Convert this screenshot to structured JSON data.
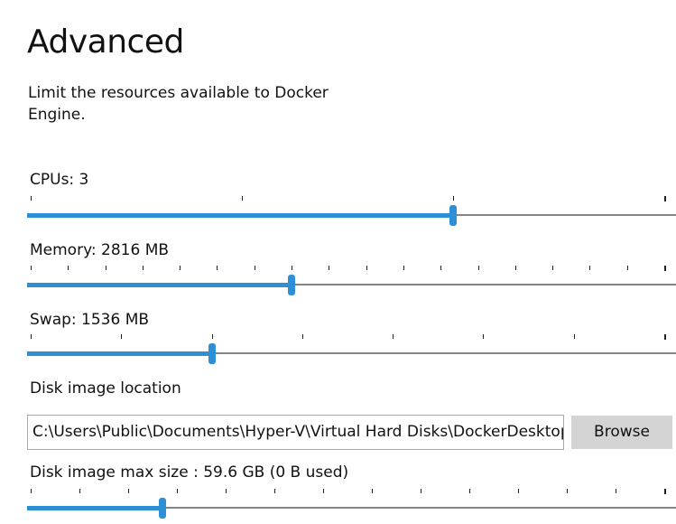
{
  "title": "Advanced",
  "description": "Limit the resources available to Docker Engine.",
  "accent": "#2d8fd5",
  "sliders": [
    {
      "id": "cpus",
      "label": "CPUs: 3",
      "ticks": 4,
      "position": 2
    },
    {
      "id": "memory",
      "label": "Memory: 2816 MB",
      "ticks": 18,
      "position": 7
    },
    {
      "id": "swap",
      "label": "Swap: 1536 MB",
      "ticks": 8,
      "position": 2
    },
    {
      "id": "disk",
      "label": "Disk image max size : 59.6 GB (0 B  used)",
      "ticks": 14,
      "position": 2.7
    }
  ],
  "disk_location": {
    "label": "Disk image location",
    "value": "C:\\Users\\Public\\Documents\\Hyper-V\\Virtual Hard Disks\\DockerDesktop.vhdx",
    "browse_label": "Browse"
  }
}
